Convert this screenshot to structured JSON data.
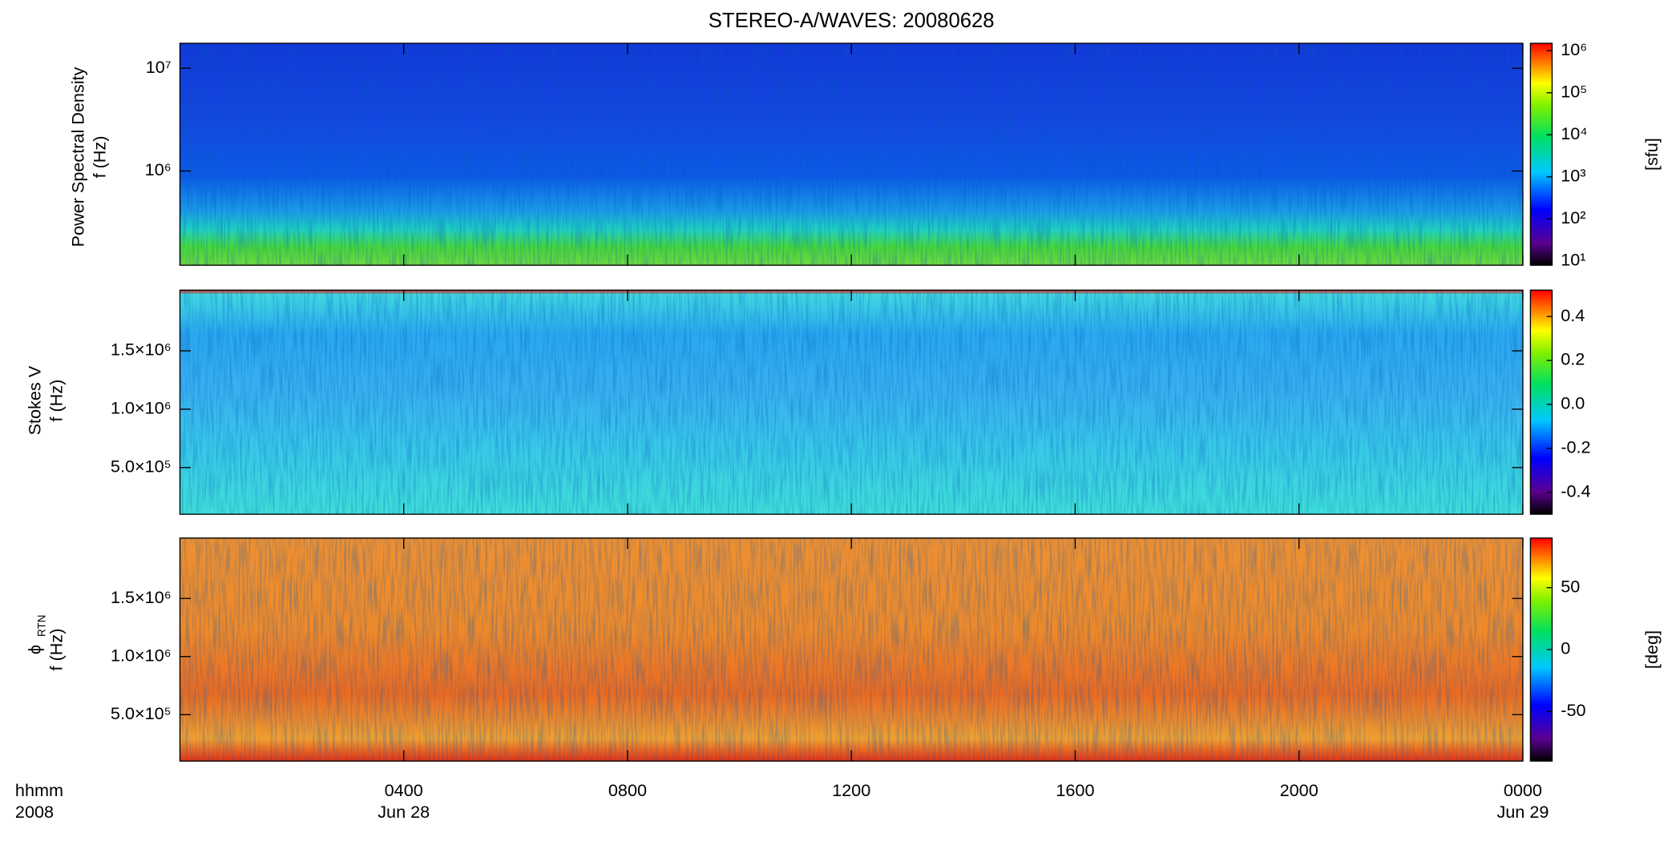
{
  "chart_data": [
    {
      "type": "heatmap",
      "title": "STEREO-A/WAVES: 20080628",
      "ylabel": [
        "Power Spectral Density",
        "f (Hz)"
      ],
      "ylog": true,
      "ylim": [
        121000,
        17500000
      ],
      "yticks": [
        {
          "value": 1000000,
          "label": "10⁶"
        },
        {
          "value": 10000000,
          "label": "10⁷"
        }
      ],
      "colorbar": {
        "log": true,
        "clim": [
          7.9,
          1500000
        ],
        "label": "[sfu]",
        "ticks": [
          {
            "value": 10,
            "label": "10¹"
          },
          {
            "value": 100,
            "label": "10²"
          },
          {
            "value": 1000,
            "label": "10³"
          },
          {
            "value": 10000,
            "label": "10⁴"
          },
          {
            "value": 100000,
            "label": "10⁵"
          },
          {
            "value": 1000000,
            "label": "10⁶"
          }
        ]
      }
    },
    {
      "type": "heatmap",
      "ylabel": [
        "Stokes V",
        "f (Hz)"
      ],
      "ylog": false,
      "ylim": [
        100000,
        2020000
      ],
      "yticks": [
        {
          "value": 500000,
          "label": "5.0×10⁵"
        },
        {
          "value": 1000000,
          "label": "1.0×10⁶"
        },
        {
          "value": 1500000,
          "label": "1.5×10⁶"
        }
      ],
      "colorbar": {
        "log": false,
        "clim": [
          -0.5,
          0.52
        ],
        "ticks": [
          -0.4,
          -0.2,
          {
            "value": 0,
            "label": "0.0"
          },
          0.2,
          0.4
        ]
      }
    },
    {
      "type": "heatmap",
      "ylabel": [
        "ϕ",
        "f (Hz)"
      ],
      "ylabel_sub": "RTN",
      "ylog": false,
      "ylim": [
        100000,
        2020000
      ],
      "yticks": [
        {
          "value": 500000,
          "label": "5.0×10⁵"
        },
        {
          "value": 1000000,
          "label": "1.0×10⁶"
        },
        {
          "value": 1500000,
          "label": "1.5×10⁶"
        }
      ],
      "colorbar": {
        "log": false,
        "clim": [
          -90,
          90
        ],
        "label": "[deg]",
        "ticks": [
          -50,
          0,
          50
        ]
      },
      "xlabel": [
        "hhmm",
        "2008"
      ],
      "xlim": [
        0,
        24
      ],
      "xticks": [
        {
          "value": 4,
          "label": "0400"
        },
        {
          "value": 8,
          "label": "0800"
        },
        {
          "value": 12,
          "label": "1200"
        },
        {
          "value": 16,
          "label": "1600"
        },
        {
          "value": 20,
          "label": "2000"
        },
        {
          "value": 24,
          "label": "0000"
        }
      ],
      "date_labels": [
        {
          "value": 4,
          "label": "Jun 28"
        },
        {
          "value": 24,
          "label": "Jun 29"
        }
      ]
    }
  ]
}
